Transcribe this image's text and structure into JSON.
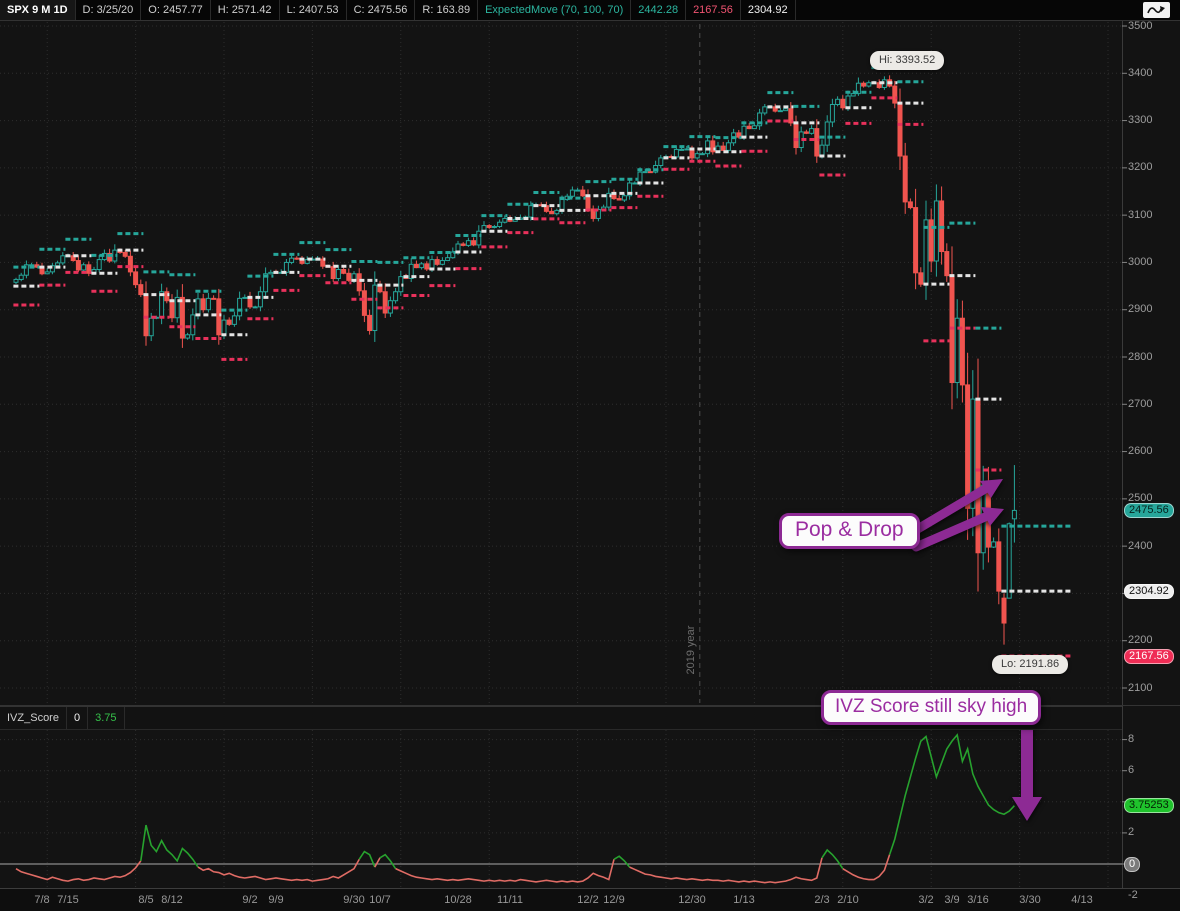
{
  "header": {
    "chips": [
      {
        "text": "SPX 9 M 1D",
        "style": "symbol",
        "name": "symbol-period-chip",
        "interactable": false
      },
      {
        "text": "D: 3/25/20",
        "style": "plain",
        "name": "date-chip",
        "interactable": false
      },
      {
        "text": "O: 2457.77",
        "style": "plain",
        "name": "open-chip",
        "interactable": false
      },
      {
        "text": "H: 2571.42",
        "style": "plain",
        "name": "high-chip",
        "interactable": false
      },
      {
        "text": "L: 2407.53",
        "style": "plain",
        "name": "low-chip",
        "interactable": false
      },
      {
        "text": "C: 2475.56",
        "style": "plain",
        "name": "close-chip",
        "interactable": false
      },
      {
        "text": "R: 163.89",
        "style": "plain",
        "name": "range-chip",
        "interactable": false
      },
      {
        "text": "ExpectedMove (70, 100, 70)",
        "style": "teal",
        "name": "study-expectedmove-chip",
        "interactable": true
      },
      {
        "text": "2442.28",
        "style": "teal",
        "name": "em-upper-value-chip",
        "interactable": false
      },
      {
        "text": "2167.56",
        "style": "pink",
        "name": "em-lower-value-chip",
        "interactable": false
      },
      {
        "text": "2304.92",
        "style": "white",
        "name": "em-mid-value-chip",
        "interactable": false
      }
    ]
  },
  "lower_header": {
    "chips": [
      {
        "text": "IVZ_Score",
        "style": "plain",
        "name": "study-ivzscore-chip",
        "interactable": true
      },
      {
        "text": "0",
        "style": "white",
        "name": "ivz-zero-param-chip",
        "interactable": false
      },
      {
        "text": "3.75",
        "style": "green",
        "name": "ivz-value-chip",
        "interactable": false
      }
    ]
  },
  "annotations": {
    "pop_drop": "Pop & Drop",
    "ivz": "IVZ Score still sky high",
    "hi": "Hi: 3393.52",
    "lo": "Lo: 2191.86",
    "year_label": "2019 year"
  },
  "colors": {
    "up": "#26a69a",
    "down": "#f0544f",
    "em_upper": "#26a69a",
    "em_mid": "#e4e4e4",
    "em_lower": "#e8315b",
    "ivz_pos": "#27a22e",
    "ivz_neg": "#e06c65",
    "annotation_purple": "#8d2a94",
    "grid": "#2e2e2e",
    "border": "#3a3a3a",
    "zero_line": "#a8a8a8"
  },
  "chart_data": {
    "type": "candlestick",
    "title": "SPX 9 M 1D with ExpectedMove (70, 100, 70) and IVZ_Score",
    "y_axis": {
      "min": 2100,
      "max": 3500,
      "tick_step": 100
    },
    "x_axis": {
      "labels": [
        {
          "t": "7/8",
          "i": 5
        },
        {
          "t": "7/15",
          "i": 10
        },
        {
          "t": "8/5",
          "i": 25
        },
        {
          "t": "8/12",
          "i": 30
        },
        {
          "t": "9/2",
          "i": 45
        },
        {
          "t": "9/9",
          "i": 50
        },
        {
          "t": "9/30",
          "i": 65
        },
        {
          "t": "10/7",
          "i": 70
        },
        {
          "t": "10/28",
          "i": 85
        },
        {
          "t": "11/11",
          "i": 95
        },
        {
          "t": "12/2",
          "i": 110
        },
        {
          "t": "12/9",
          "i": 115
        },
        {
          "t": "12/30",
          "i": 130
        },
        {
          "t": "1/13",
          "i": 140
        },
        {
          "t": "2/3",
          "i": 155
        },
        {
          "t": "2/10",
          "i": 160
        },
        {
          "t": "3/2",
          "i": 175
        },
        {
          "t": "3/9",
          "i": 180
        },
        {
          "t": "3/16",
          "i": 185
        },
        {
          "t": "3/30",
          "i": 195
        },
        {
          "t": "4/13",
          "i": 205
        }
      ],
      "year_divider_bar": 131.5
    },
    "closes": [
      2964,
      2973,
      2995,
      2995,
      2990,
      2976,
      2980,
      2993,
      2999,
      3014,
      3014,
      3004,
      2984,
      2995,
      2977,
      2985,
      3006,
      3019,
      3003,
      3026,
      3021,
      3013,
      2980,
      2953,
      2932,
      2845,
      2882,
      2884,
      2938,
      2919,
      2883,
      2926,
      2840,
      2847,
      2889,
      2923,
      2900,
      2924,
      2923,
      2847,
      2878,
      2869,
      2887,
      2924,
      2926,
      2906,
      2906,
      2938,
      2976,
      2979,
      2978,
      2979,
      3000,
      3009,
      3007,
      2998,
      3006,
      3007,
      3007,
      2992,
      2991,
      2966,
      2985,
      2977,
      2962,
      2976,
      2940,
      2888,
      2856,
      2952,
      2938,
      2893,
      2919,
      2938,
      2970,
      2966,
      2996,
      2989,
      2997,
      2986,
      3006,
      2996,
      3004,
      3010,
      3022,
      3039,
      3036,
      3046,
      3037,
      3066,
      3078,
      3074,
      3076,
      3085,
      3093,
      3087,
      3091,
      3094,
      3096,
      3120,
      3122,
      3120,
      3108,
      3103,
      3110,
      3133,
      3140,
      3153,
      3153,
      3141,
      3113,
      3093,
      3112,
      3117,
      3146,
      3135,
      3132,
      3141,
      3168,
      3168,
      3191,
      3192,
      3191,
      3205,
      3221,
      3224,
      3223,
      3239,
      3239,
      3240,
      3221,
      3230,
      3230,
      3257,
      3234,
      3246,
      3237,
      3253,
      3274,
      3265,
      3288,
      3283,
      3289,
      3316,
      3329,
      3329,
      3320,
      3321,
      3325,
      3295,
      3243,
      3276,
      3273,
      3283,
      3225,
      3248,
      3297,
      3334,
      3345,
      3327,
      3352,
      3357,
      3379,
      3373,
      3380,
      3380,
      3370,
      3386.15,
      3373,
      3337,
      3225,
      3128,
      3116,
      2978,
      2954,
      3090,
      3003,
      3130,
      3023,
      2972,
      2746,
      2882,
      2741,
      2480,
      2711,
      2386,
      2529,
      2398,
      2409,
      2304.92,
      2237.4,
      2447.3,
      2475.56
    ],
    "ohlc_overrides": {
      "167": [
        3370,
        3393.52,
        3365,
        3386.15
      ],
      "190": [
        2290,
        2300,
        2191.86,
        2237.4
      ],
      "191": [
        2290,
        2450,
        2290,
        2447.3
      ],
      "192": [
        2457.77,
        2571.42,
        2407.53,
        2475.56
      ]
    },
    "expected_move_weeks": {
      "mids": [
        2950,
        2990,
        3014,
        2977,
        3026,
        2932,
        2919,
        2889,
        2847,
        2926,
        2979,
        3007,
        2992,
        2962,
        2952,
        2970,
        2986,
        3022,
        3066,
        3093,
        3120,
        3110,
        3141,
        3146,
        3168,
        3221,
        3240,
        3234,
        3265,
        3329,
        3295,
        3225,
        3327,
        3380,
        3337,
        2954,
        2972,
        2711,
        2304.92
      ],
      "ems": [
        40,
        38,
        35,
        38,
        35,
        48,
        55,
        50,
        52,
        45,
        38,
        35,
        35,
        40,
        48,
        40,
        35,
        35,
        33,
        30,
        28,
        26,
        30,
        30,
        28,
        24,
        26,
        30,
        30,
        30,
        35,
        40,
        33,
        32,
        45,
        120,
        111,
        150,
        137.36
      ],
      "current_upper": 2442.28,
      "current_mid": 2304.92,
      "current_lower": 2167.56
    },
    "hi_marker": {
      "price": 3393.52,
      "bar": 167
    },
    "lo_marker": {
      "price": 2191.86,
      "bar": 190
    },
    "price_bubbles": [
      {
        "text": "2475.56",
        "price": 2475.56,
        "style": "green"
      },
      {
        "text": "2304.92",
        "price": 2304.92,
        "style": "white"
      },
      {
        "text": "2167.56",
        "price": 2167.56,
        "style": "red"
      }
    ],
    "lower_study": {
      "name": "IVZ_Score",
      "ticks_labeled": [
        8,
        6,
        2
      ],
      "tick_bottom": "-2",
      "zero_level": 0,
      "value_bubble": "3.75253",
      "zero_bubble": "0",
      "values": [
        -0.3,
        -0.5,
        -0.6,
        -0.7,
        -0.8,
        -0.9,
        -1.0,
        -0.85,
        -0.95,
        -1.05,
        -1.1,
        -1.0,
        -0.95,
        -1.05,
        -1.0,
        -0.9,
        -0.95,
        -1.0,
        -0.9,
        -0.8,
        -0.85,
        -0.75,
        -0.55,
        -0.25,
        0.2,
        2.5,
        1.2,
        0.8,
        1.5,
        0.9,
        0.6,
        0.2,
        1.0,
        0.7,
        0.3,
        -0.2,
        -0.4,
        -0.3,
        -0.5,
        -0.55,
        -0.7,
        -0.6,
        -0.75,
        -0.85,
        -0.9,
        -0.85,
        -0.8,
        -0.9,
        -1.0,
        -0.95,
        -0.9,
        -0.95,
        -1.0,
        -1.05,
        -1.0,
        -1.05,
        -1.0,
        -1.1,
        -1.05,
        -1.0,
        -0.95,
        -0.8,
        -0.9,
        -0.7,
        -0.5,
        -0.3,
        0.3,
        0.8,
        0.6,
        -0.2,
        0.4,
        0.6,
        0.2,
        -0.3,
        -0.45,
        -0.6,
        -0.75,
        -0.85,
        -0.9,
        -0.95,
        -1.0,
        -0.95,
        -1.0,
        -1.05,
        -1.0,
        -1.05,
        -1.0,
        -0.95,
        -1.0,
        -1.05,
        -1.1,
        -1.05,
        -1.1,
        -1.05,
        -1.1,
        -1.05,
        -1.1,
        -1.0,
        -1.05,
        -1.1,
        -1.15,
        -1.1,
        -1.05,
        -1.1,
        -1.15,
        -1.1,
        -1.15,
        -1.1,
        -1.15,
        -1.1,
        -0.9,
        -0.6,
        -0.75,
        -0.85,
        -1.0,
        0.3,
        0.5,
        0.2,
        -0.2,
        -0.35,
        -0.5,
        -0.65,
        -0.7,
        -0.8,
        -0.85,
        -0.9,
        -0.95,
        -0.9,
        -0.95,
        -1.0,
        -0.95,
        -1.0,
        -1.05,
        -1.0,
        -1.05,
        -1.05,
        -1.1,
        -1.05,
        -1.1,
        -1.15,
        -1.1,
        -1.15,
        -1.1,
        -1.15,
        -1.2,
        -1.15,
        -1.2,
        -1.15,
        -1.1,
        -1.0,
        -0.85,
        -0.95,
        -1.0,
        -1.05,
        -0.9,
        0.4,
        0.9,
        0.6,
        0.2,
        -0.3,
        -0.5,
        -0.7,
        -0.85,
        -0.95,
        -1.0,
        -1.0,
        -0.8,
        -0.4,
        0.6,
        1.6,
        3.0,
        4.4,
        5.6,
        6.8,
        7.9,
        8.2,
        6.9,
        5.6,
        6.5,
        7.4,
        7.9,
        8.3,
        6.6,
        7.4,
        5.8,
        5.0,
        4.4,
        3.8,
        3.5,
        3.3,
        3.2,
        3.4,
        3.75253
      ]
    }
  }
}
